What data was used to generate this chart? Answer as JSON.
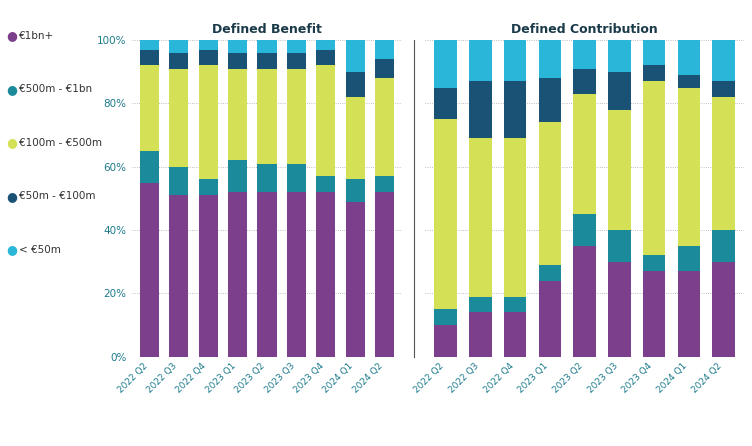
{
  "db_quarters": [
    "2022 Q2",
    "2022 Q3",
    "2022 Q4",
    "2023 Q1",
    "2023 Q2",
    "2023 Q3",
    "2023 Q4",
    "2024 Q1",
    "2024 Q2"
  ],
  "dc_quarters": [
    "2022 Q2",
    "2022 Q3",
    "2022 Q4",
    "2023 Q1",
    "2023 Q2",
    "2023 Q3",
    "2023 Q4",
    "2024 Q1",
    "2024 Q2"
  ],
  "db_data": {
    "eur1bn_plus": [
      55,
      51,
      51,
      52,
      52,
      52,
      52,
      49,
      52
    ],
    "eur500m_1bn": [
      10,
      9,
      5,
      10,
      9,
      9,
      5,
      7,
      5
    ],
    "eur100m_500m": [
      27,
      31,
      36,
      29,
      30,
      30,
      35,
      26,
      31
    ],
    "eur50m_100m": [
      5,
      5,
      5,
      5,
      5,
      5,
      5,
      8,
      6
    ],
    "lt_eur50m": [
      3,
      4,
      3,
      4,
      4,
      4,
      3,
      10,
      6
    ]
  },
  "dc_data": {
    "eur1bn_plus": [
      10,
      14,
      14,
      24,
      35,
      30,
      27,
      27,
      30
    ],
    "eur500m_1bn": [
      5,
      5,
      5,
      5,
      10,
      10,
      5,
      8,
      10
    ],
    "eur100m_500m": [
      60,
      50,
      50,
      45,
      38,
      38,
      55,
      50,
      42
    ],
    "eur50m_100m": [
      10,
      18,
      18,
      14,
      8,
      12,
      5,
      4,
      5
    ],
    "lt_eur50m": [
      15,
      13,
      13,
      12,
      9,
      10,
      8,
      11,
      13
    ]
  },
  "colors": {
    "eur1bn_plus": "#7B3F8C",
    "eur500m_1bn": "#1B8A9A",
    "eur100m_500m": "#D4E157",
    "eur50m_100m": "#1A5276",
    "lt_eur50m": "#29B6D8"
  },
  "legend_labels": [
    "€1bn+",
    "€500m - €1bn",
    "€100m - €500m",
    "€50m - €100m",
    "< €50m"
  ],
  "title_db": "Defined Benefit",
  "title_dc": "Defined Contribution",
  "ytick_labels": [
    "0%",
    "20%",
    "40%",
    "60%",
    "80%",
    "100%"
  ],
  "ytick_values": [
    0,
    20,
    40,
    60,
    80,
    100
  ],
  "title_color": "#1A3A4A",
  "tick_color": "#1B7A8A",
  "background_color": "#ffffff"
}
